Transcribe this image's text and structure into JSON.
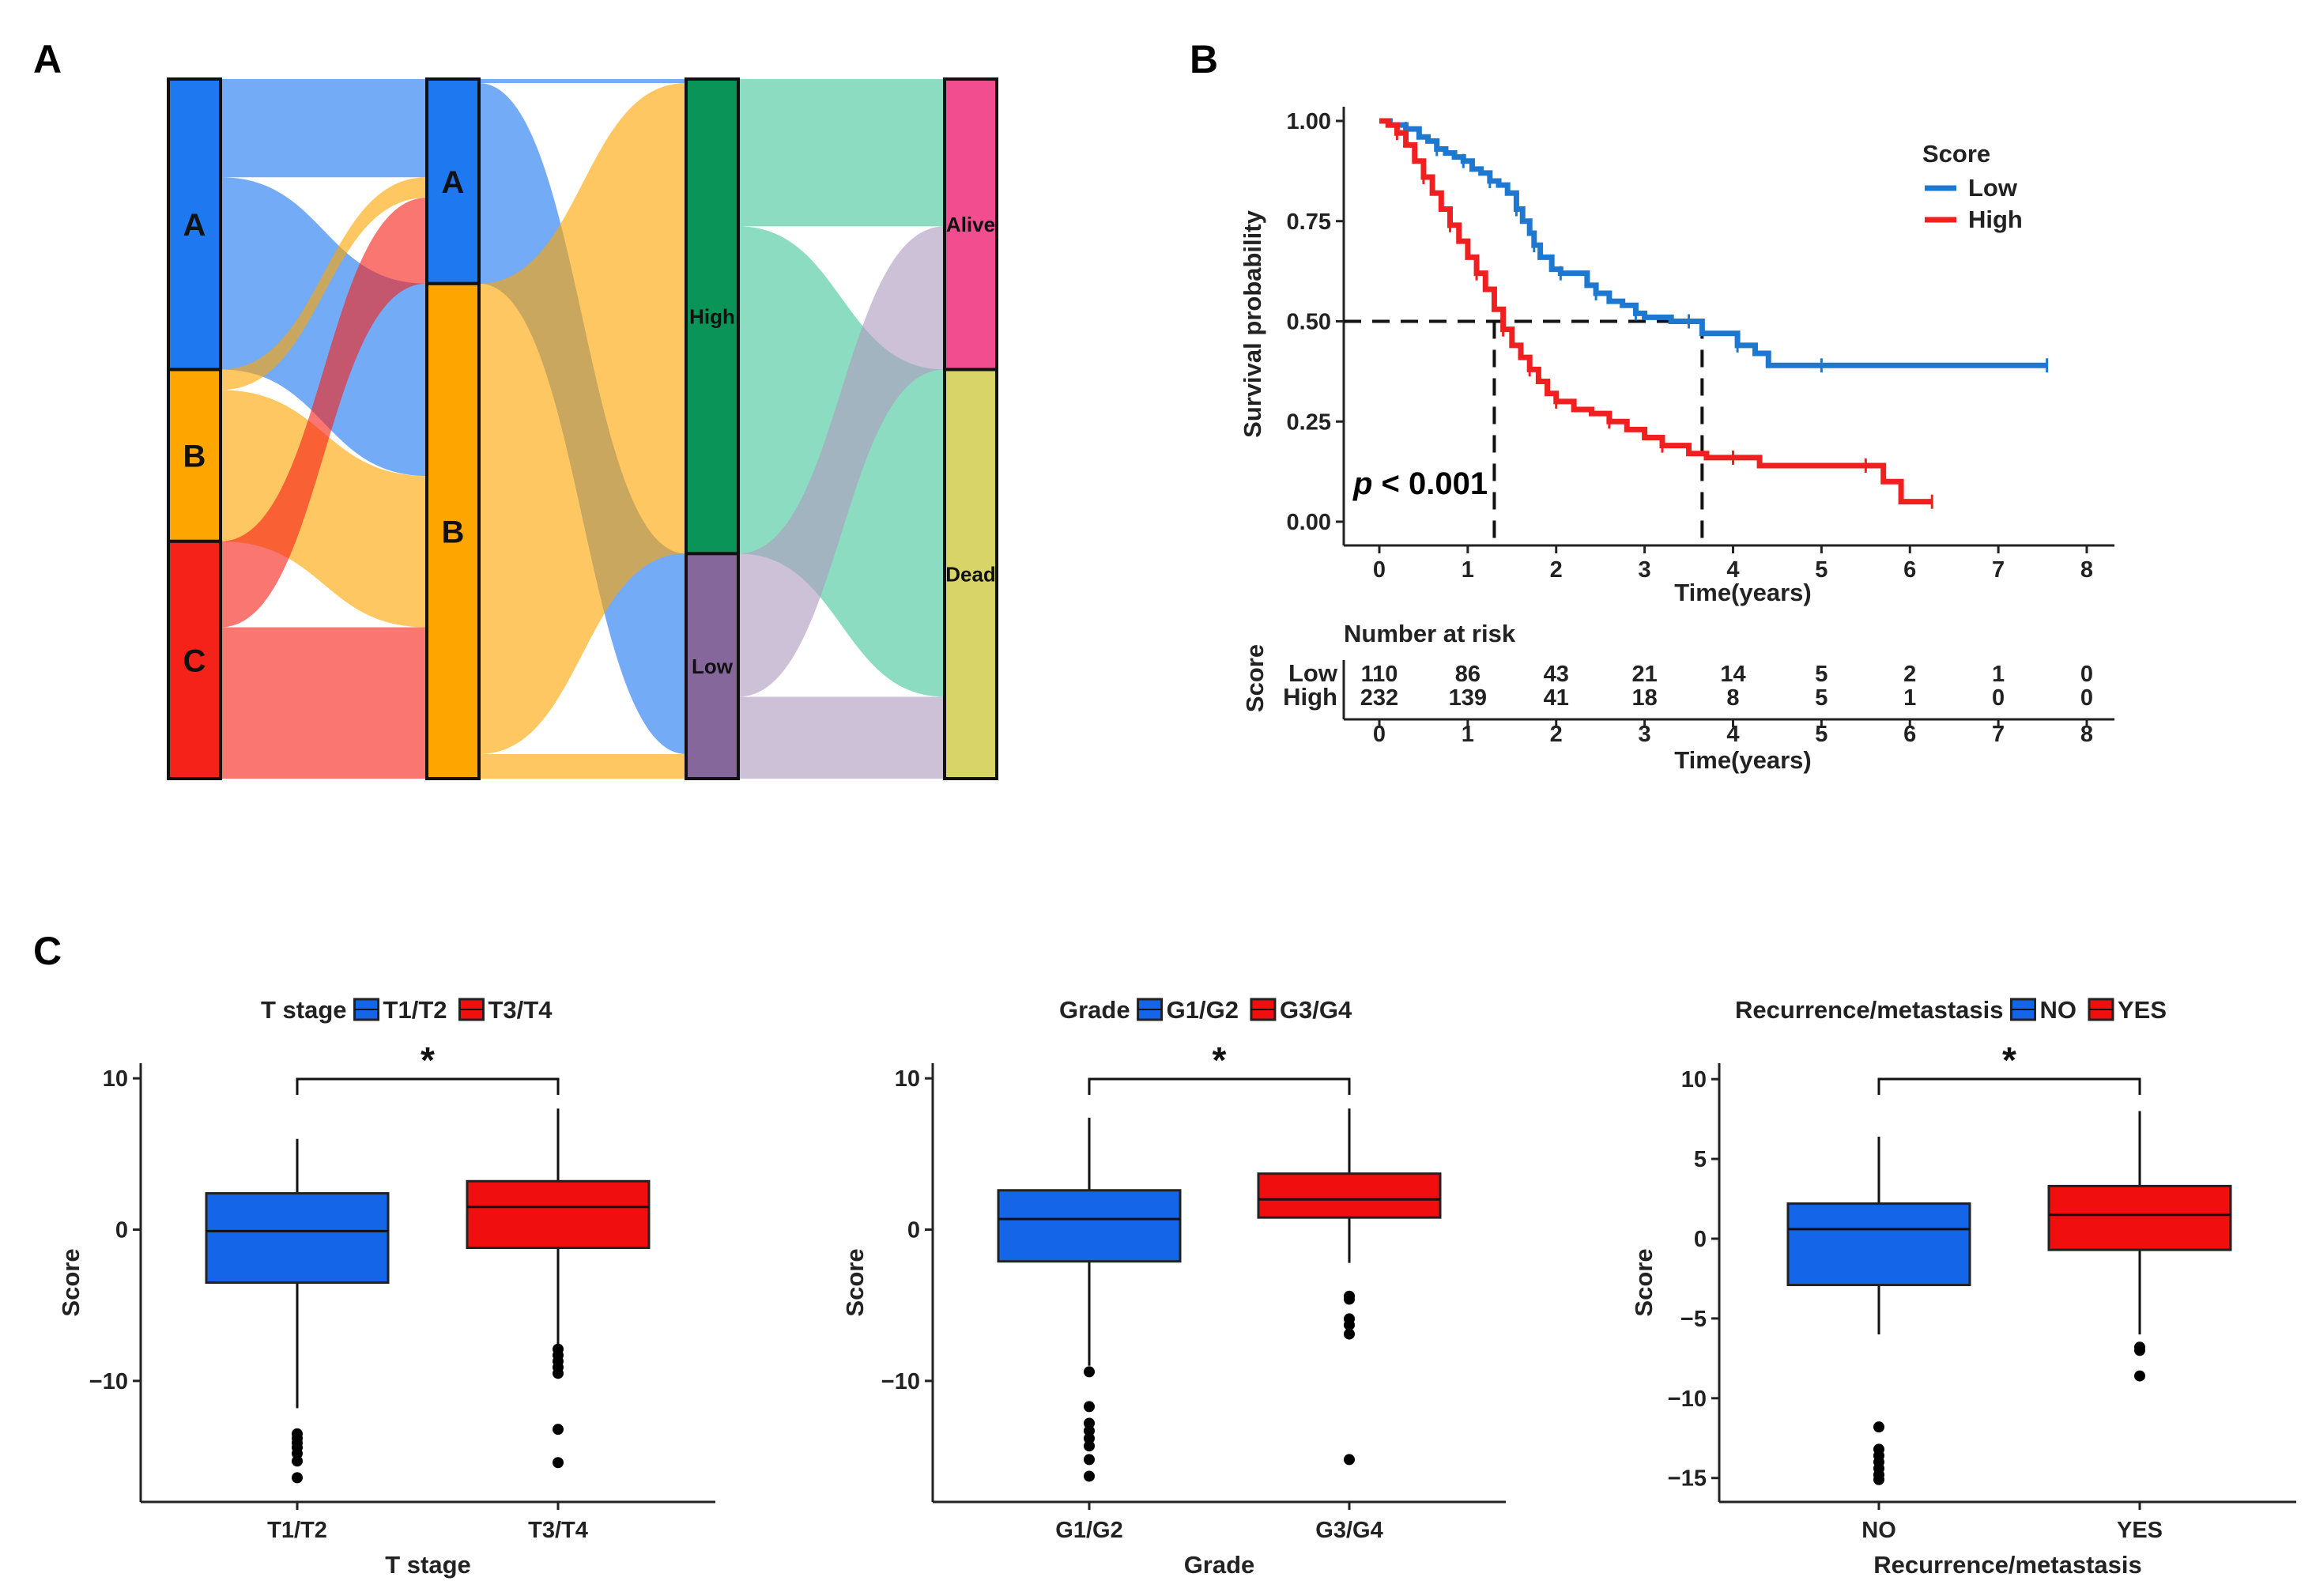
{
  "panels": {
    "a": "A",
    "b": "B",
    "c": "C"
  },
  "colors": {
    "A": "#1E78F0",
    "B": "#FFA500",
    "C": "#F5221A",
    "High": "#0A9457",
    "Low": "#86679C",
    "Alive": "#F24D8F",
    "Dead": "#D8D468",
    "flow_alive_dead": "#44C79B",
    "flow_low_score": "#AF9BC0",
    "km_low": "#1F78D0",
    "km_high": "#F02020",
    "box_low": "#1565E8",
    "box_high": "#F00E0E"
  },
  "sankey": {
    "axes": [
      {
        "nodes": [
          {
            "id": "A",
            "label": "A",
            "value": 142
          },
          {
            "id": "B",
            "label": "B",
            "value": 84
          },
          {
            "id": "C",
            "label": "C",
            "value": 116
          }
        ]
      },
      {
        "nodes": [
          {
            "id": "A",
            "label": "A",
            "value": 100
          },
          {
            "id": "B",
            "label": "B",
            "value": 242
          }
        ]
      },
      {
        "nodes": [
          {
            "id": "High",
            "label": "High",
            "value": 232
          },
          {
            "id": "Low",
            "label": "Low",
            "value": 110
          }
        ]
      },
      {
        "nodes": [
          {
            "id": "Alive",
            "label": "Alive",
            "value": 142
          },
          {
            "id": "Dead",
            "label": "Dead",
            "value": 200
          }
        ]
      }
    ],
    "links": [
      [
        {
          "from": "A",
          "to": "A",
          "value": 48,
          "color": "A"
        },
        {
          "from": "A",
          "to": "B",
          "value": 94,
          "color": "A"
        },
        {
          "from": "B",
          "to": "A",
          "value": 10,
          "color": "B"
        },
        {
          "from": "B",
          "to": "B",
          "value": 74,
          "color": "B"
        },
        {
          "from": "C",
          "to": "A",
          "value": 42,
          "color": "C"
        },
        {
          "from": "C",
          "to": "B",
          "value": 74,
          "color": "C"
        }
      ],
      [
        {
          "from": "A",
          "to": "High",
          "value": 2,
          "color": "A"
        },
        {
          "from": "A",
          "to": "Low",
          "value": 98,
          "color": "A"
        },
        {
          "from": "B",
          "to": "High",
          "value": 230,
          "color": "B"
        },
        {
          "from": "B",
          "to": "Low",
          "value": 12,
          "color": "B"
        }
      ],
      [
        {
          "from": "High",
          "to": "Alive",
          "value": 72,
          "color": "flow_alive_dead"
        },
        {
          "from": "High",
          "to": "Dead",
          "value": 160,
          "color": "flow_alive_dead"
        },
        {
          "from": "Low",
          "to": "Alive",
          "value": 70,
          "color": "flow_low_score"
        },
        {
          "from": "Low",
          "to": "Dead",
          "value": 40,
          "color": "flow_low_score"
        }
      ]
    ]
  },
  "chart_data": [
    {
      "type": "line",
      "title": "",
      "xlabel": "Time(years)",
      "ylabel": "Survival probability",
      "xlim": [
        0,
        8
      ],
      "ylim": [
        0,
        1
      ],
      "xticks": [
        "0",
        "1",
        "2",
        "3",
        "4",
        "5",
        "6",
        "7",
        "8"
      ],
      "yticks": [
        "0.00",
        "0.25",
        "0.50",
        "0.75",
        "1.00"
      ],
      "legend_title": "Score",
      "pvalue_p": "p",
      "pvalue_rest": " < 0.001",
      "median_line_y": 0.5,
      "medians": [
        1.3,
        3.65
      ],
      "series": [
        {
          "name": "Low",
          "color": "km_low",
          "x": [
            0,
            0.12,
            0.3,
            0.45,
            0.55,
            0.65,
            0.75,
            0.85,
            0.95,
            1.05,
            1.15,
            1.25,
            1.35,
            1.45,
            1.55,
            1.62,
            1.7,
            1.75,
            1.82,
            1.95,
            2.05,
            2.2,
            2.35,
            2.45,
            2.6,
            2.75,
            2.9,
            3.0,
            3.3,
            3.5,
            3.65,
            3.85,
            4.05,
            4.25,
            4.4,
            5.0,
            6.0,
            7.0,
            7.55
          ],
          "y": [
            1.0,
            0.99,
            0.98,
            0.96,
            0.95,
            0.93,
            0.92,
            0.91,
            0.9,
            0.88,
            0.87,
            0.85,
            0.84,
            0.82,
            0.78,
            0.75,
            0.72,
            0.69,
            0.66,
            0.63,
            0.62,
            0.62,
            0.59,
            0.57,
            0.55,
            0.54,
            0.52,
            0.51,
            0.5,
            0.5,
            0.47,
            0.47,
            0.44,
            0.42,
            0.39,
            0.39,
            0.39,
            0.39,
            0.39
          ]
        },
        {
          "name": "High",
          "color": "km_high",
          "x": [
            0,
            0.1,
            0.2,
            0.3,
            0.4,
            0.5,
            0.6,
            0.7,
            0.8,
            0.9,
            1.0,
            1.1,
            1.2,
            1.3,
            1.4,
            1.5,
            1.6,
            1.7,
            1.8,
            1.9,
            2.0,
            2.2,
            2.4,
            2.6,
            2.8,
            3.0,
            3.2,
            3.5,
            3.7,
            4.0,
            4.3,
            5.0,
            5.5,
            5.7,
            5.9,
            6.25
          ],
          "y": [
            1.0,
            0.99,
            0.97,
            0.94,
            0.9,
            0.86,
            0.82,
            0.78,
            0.74,
            0.7,
            0.66,
            0.62,
            0.58,
            0.53,
            0.48,
            0.44,
            0.41,
            0.38,
            0.35,
            0.32,
            0.3,
            0.28,
            0.27,
            0.25,
            0.23,
            0.21,
            0.19,
            0.17,
            0.16,
            0.16,
            0.14,
            0.14,
            0.14,
            0.1,
            0.05,
            0.05
          ]
        }
      ],
      "risk_table": {
        "title": "Number at risk",
        "ylabel": "Score",
        "xlabel": "Time(years)",
        "times": [
          "0",
          "1",
          "2",
          "3",
          "4",
          "5",
          "6",
          "7",
          "8"
        ],
        "rows": [
          {
            "name": "Low",
            "color": "km_low",
            "values": [
              "110",
              "86",
              "43",
              "21",
              "14",
              "5",
              "2",
              "1",
              "0"
            ]
          },
          {
            "name": "High",
            "color": "km_high",
            "values": [
              "232",
              "139",
              "41",
              "18",
              "8",
              "5",
              "1",
              "0",
              "0"
            ]
          }
        ]
      }
    },
    {
      "type": "box",
      "legend_title": "T stage",
      "xlabel": "T stage",
      "ylabel": "Score",
      "ylim": [
        -18,
        11
      ],
      "yticks": [
        -10,
        0,
        10
      ],
      "ytick_labels": [
        "−10",
        "0",
        "10"
      ],
      "significance": "*",
      "groups": [
        {
          "name": "T1/T2",
          "color": "box_low",
          "whisker_low": -11.8,
          "q1": -3.5,
          "median": -0.1,
          "q3": 2.4,
          "whisker_high": 6.0,
          "outliers": [
            -13.5,
            -13.8,
            -14.1,
            -14.4,
            -14.8,
            -15.3,
            -16.4
          ]
        },
        {
          "name": "T3/T4",
          "color": "box_high",
          "whisker_low": -7.6,
          "q1": -1.2,
          "median": 1.5,
          "q3": 3.2,
          "whisker_high": 8.0,
          "outliers": [
            -7.9,
            -8.3,
            -8.7,
            -9.1,
            -9.5,
            -13.2,
            -15.4
          ]
        }
      ]
    },
    {
      "type": "box",
      "legend_title": "Grade",
      "xlabel": "Grade",
      "ylabel": "Score",
      "ylim": [
        -18,
        11
      ],
      "yticks": [
        -10,
        0,
        10
      ],
      "ytick_labels": [
        "−10",
        "0",
        "10"
      ],
      "significance": "*",
      "groups": [
        {
          "name": "G1/G2",
          "color": "box_low",
          "whisker_low": -9.0,
          "q1": -2.1,
          "median": 0.7,
          "q3": 2.6,
          "whisker_high": 7.4,
          "outliers": [
            -9.4,
            -11.7,
            -12.8,
            -13.3,
            -13.8,
            -14.3,
            -15.2,
            -16.3
          ]
        },
        {
          "name": "G3/G4",
          "color": "box_high",
          "whisker_low": -2.2,
          "q1": 0.8,
          "median": 2.0,
          "q3": 3.7,
          "whisker_high": 8.0,
          "outliers": [
            -4.4,
            -4.6,
            -5.9,
            -6.3,
            -6.9,
            -15.2
          ]
        }
      ]
    },
    {
      "type": "box",
      "legend_title": "Recurrence/metastasis",
      "xlabel": "Recurrence/metastasis",
      "ylabel": "Score",
      "ylim": [
        -16.5,
        11
      ],
      "yticks": [
        -15,
        -10,
        -5,
        0,
        5,
        10
      ],
      "ytick_labels": [
        "−15",
        "−10",
        "−5",
        "0",
        "5",
        "10"
      ],
      "significance": "*",
      "groups": [
        {
          "name": "NO",
          "color": "box_low",
          "whisker_low": -6.0,
          "q1": -2.9,
          "median": 0.6,
          "q3": 2.2,
          "whisker_high": 6.4,
          "outliers": [
            -11.8,
            -13.2,
            -13.6,
            -14.0,
            -14.4,
            -14.8,
            -15.1
          ]
        },
        {
          "name": "YES",
          "color": "box_high",
          "whisker_low": -6.0,
          "q1": -0.7,
          "median": 1.5,
          "q3": 3.3,
          "whisker_high": 8.0,
          "outliers": [
            -6.8,
            -7.0,
            -8.6
          ]
        }
      ]
    }
  ]
}
